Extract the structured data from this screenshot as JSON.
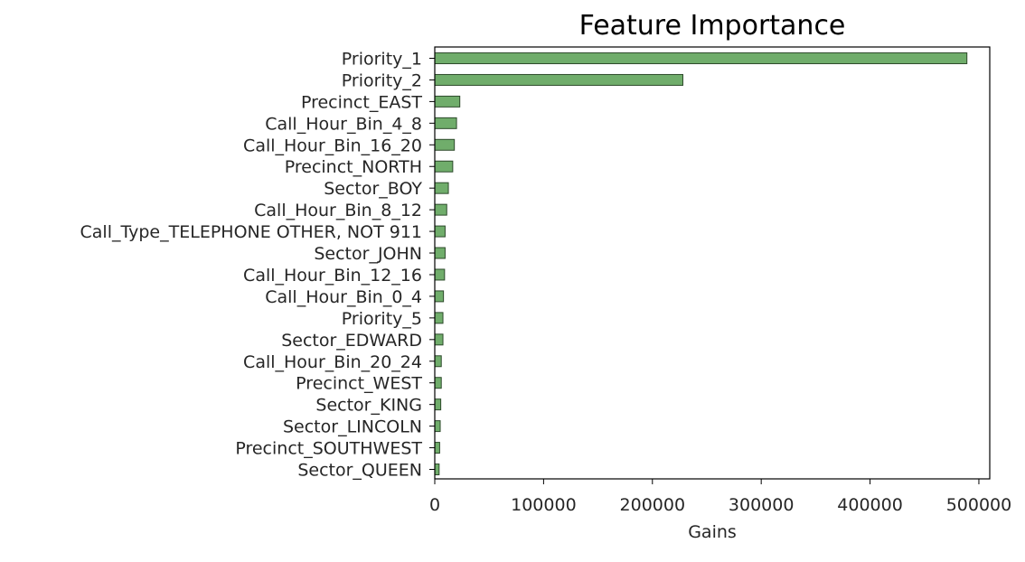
{
  "chart_data": {
    "type": "bar",
    "orientation": "horizontal",
    "title": "Feature Importance",
    "xlabel": "Gains",
    "ylabel": "",
    "xlim": [
      0,
      510000
    ],
    "xticks": [
      0,
      100000,
      200000,
      300000,
      400000,
      500000
    ],
    "grid": false,
    "bar_color": "#70ad6b",
    "bar_edge_color": "#2d4a2b",
    "categories": [
      "Priority_1",
      "Priority_2",
      "Precinct_EAST",
      "Call_Hour_Bin_4_8",
      "Call_Hour_Bin_16_20",
      "Precinct_NORTH",
      "Sector_BOY",
      "Call_Hour_Bin_8_12",
      "Call_Type_TELEPHONE OTHER, NOT 911",
      "Sector_JOHN",
      "Call_Hour_Bin_12_16",
      "Call_Hour_Bin_0_4",
      "Priority_5",
      "Sector_EDWARD",
      "Call_Hour_Bin_20_24",
      "Precinct_WEST",
      "Sector_KING",
      "Sector_LINCOLN",
      "Precinct_SOUTHWEST",
      "Sector_QUEEN"
    ],
    "values": [
      489000,
      228000,
      23000,
      20000,
      18000,
      16500,
      12500,
      11000,
      9500,
      9500,
      9000,
      8000,
      7500,
      7500,
      6000,
      6000,
      5500,
      5000,
      4500,
      4000
    ]
  }
}
